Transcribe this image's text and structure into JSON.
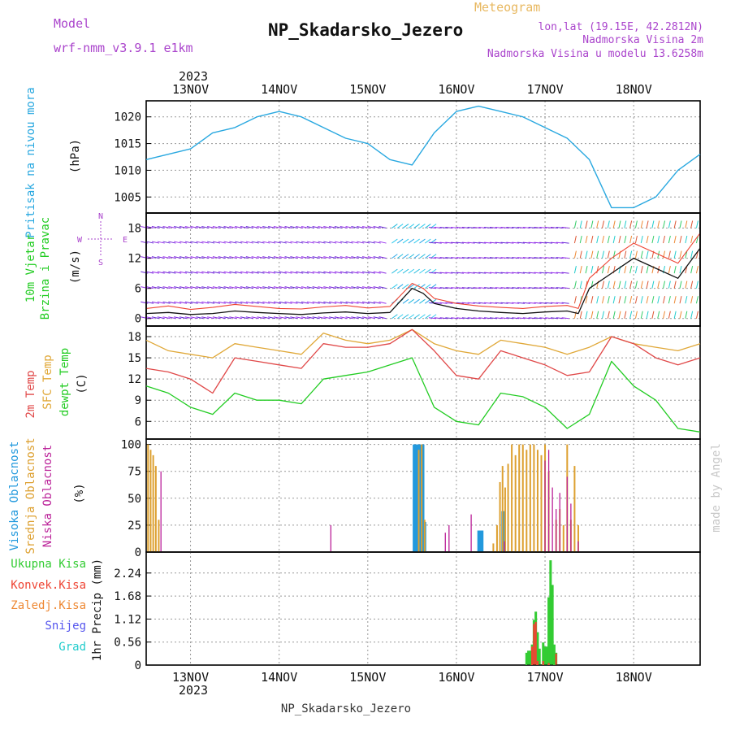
{
  "header": {
    "title": "NP_Skadarsko_Jezero",
    "subtitle": "Meteogram",
    "model_label": "Model",
    "model_name": "wrf-nmm_v3.9.1  e1km",
    "location": "lon,lat (19.15E, 42.2812N)",
    "elevation": "Nadmorska Visina 2m",
    "model_elevation": "Nadmorska Visina u modelu 13.6258m",
    "footer": "NP_Skadarsko_Jezero",
    "credit": "made by Angel"
  },
  "colors": {
    "pressure": "#29a8e0",
    "wind_speed": "#111111",
    "wind_gust": "#ee4433",
    "temp2m": "#e04848",
    "sfc_temp": "#e0a838",
    "dewpt": "#22cc22",
    "cloud_high": "#2299dd",
    "cloud_mid": "#dda030",
    "cloud_low": "#bb2299",
    "rain_total": "#33cc33",
    "rain_conv": "#ee4433",
    "freezing": "#ee8833",
    "snow": "#5555ee",
    "hail": "#22cccc",
    "purple_text": "#aa44cc",
    "title_orange": "#e8b860"
  },
  "chart_data": [
    {
      "type": "line",
      "panel": "pressure",
      "ylabel": "Pritisak na nivou mora",
      "unit": "(hPa)",
      "ylim": [
        1002,
        1023
      ],
      "yticks": [
        1005,
        1010,
        1015,
        1020
      ],
      "x_hours": [
        0,
        6,
        12,
        18,
        24,
        30,
        36,
        42,
        48,
        54,
        60,
        66,
        72,
        78,
        84,
        90,
        96,
        102,
        108,
        114,
        120,
        126,
        132,
        138,
        144,
        150
      ],
      "series": [
        {
          "values": [
            1012,
            1013,
            1014,
            1017,
            1018,
            1020,
            1021,
            1020,
            1018,
            1016,
            1015,
            1012,
            1011,
            1017,
            1021,
            1022,
            1021,
            1020,
            1018,
            1016,
            1012,
            1003,
            1003,
            1005,
            1010,
            1013
          ]
        }
      ]
    },
    {
      "type": "line",
      "panel": "wind",
      "ylabel_1": "10m Vjetar",
      "ylabel_2": "Brzina i Pravac",
      "unit": "(m/s)",
      "compass_n": "N",
      "compass_e": "E",
      "compass_w": "W",
      "compass_s": "S",
      "ylim": [
        -1.5,
        21
      ],
      "yticks": [
        0,
        6,
        12,
        18
      ],
      "x_hours": [
        0,
        6,
        12,
        18,
        24,
        30,
        36,
        42,
        48,
        54,
        60,
        66,
        72,
        75,
        78,
        84,
        90,
        96,
        102,
        108,
        114,
        117,
        120,
        126,
        132,
        138,
        144,
        150
      ],
      "series": [
        {
          "name": "speed",
          "values": [
            1,
            1.2,
            0.8,
            1,
            1.5,
            1.2,
            1,
            0.8,
            1.1,
            1.3,
            1,
            1.2,
            6,
            5,
            3,
            2,
            1.5,
            1.2,
            1,
            1.3,
            1.5,
            1,
            6,
            9,
            12,
            10,
            8,
            14
          ]
        },
        {
          "name": "gust",
          "values": [
            2,
            2.5,
            1.8,
            2.2,
            2.8,
            2.4,
            2,
            1.9,
            2.3,
            2.6,
            2.1,
            2.4,
            7,
            6,
            4,
            3,
            2.5,
            2.2,
            2,
            2.4,
            2.6,
            2,
            8,
            12,
            15,
            13,
            11,
            17
          ]
        }
      ]
    },
    {
      "type": "line",
      "panel": "temperature",
      "ylabel_1": "2m Temp",
      "ylabel_2": "SFC Temp",
      "ylabel_3": "dewpt Temp",
      "unit": "(C)",
      "ylim": [
        3.5,
        19.5
      ],
      "yticks": [
        6,
        9,
        12,
        15,
        18
      ],
      "x_hours": [
        0,
        6,
        12,
        18,
        24,
        30,
        36,
        42,
        48,
        54,
        60,
        66,
        72,
        78,
        84,
        90,
        96,
        102,
        108,
        114,
        120,
        126,
        132,
        138,
        144,
        150
      ],
      "series": [
        {
          "name": "2m Temp",
          "values": [
            13.5,
            13,
            12,
            10,
            15,
            14.5,
            14,
            13.5,
            17,
            16.5,
            16.5,
            17,
            19,
            16,
            12.5,
            12,
            16,
            15,
            14,
            12.5,
            13,
            18,
            17,
            15,
            14,
            15
          ]
        },
        {
          "name": "SFC Temp",
          "values": [
            17.5,
            16,
            15.5,
            15,
            17,
            16.5,
            16,
            15.5,
            18.5,
            17.5,
            17,
            17.5,
            19,
            17,
            16,
            15.5,
            17.5,
            17,
            16.5,
            15.5,
            16.5,
            18,
            17,
            16.5,
            16,
            17
          ]
        },
        {
          "name": "dewpt Temp",
          "values": [
            11,
            10,
            8,
            7,
            10,
            9,
            9,
            8.5,
            12,
            12.5,
            13,
            14,
            15,
            8,
            6,
            5.5,
            10,
            9.5,
            8,
            5,
            7,
            14.5,
            11,
            9,
            5,
            4.5
          ]
        }
      ]
    },
    {
      "type": "bar",
      "panel": "clouds",
      "ylabel_1": "Visoka Oblacnost",
      "ylabel_2": "Srednja Oblacnost",
      "ylabel_3": "Niska Oblacnost",
      "unit": "(%)",
      "ylim": [
        0,
        105
      ],
      "yticks": [
        0,
        25,
        50,
        75,
        100
      ],
      "series": [
        {
          "name": "high",
          "points": [
            [
              72.5,
              100
            ],
            [
              73,
              100
            ],
            [
              73.5,
              100
            ],
            [
              74,
              100
            ],
            [
              74.5,
              100
            ],
            [
              75,
              100
            ],
            [
              75.5,
              28
            ],
            [
              90,
              20
            ],
            [
              90.5,
              20
            ],
            [
              91,
              20
            ],
            [
              96.5,
              38
            ],
            [
              97,
              38
            ]
          ]
        },
        {
          "name": "mid",
          "points": [
            [
              0.5,
              100
            ],
            [
              1.2,
              95
            ],
            [
              1.9,
              90
            ],
            [
              2.6,
              80
            ],
            [
              3.4,
              30
            ],
            [
              73.8,
              95
            ],
            [
              74.6,
              100
            ],
            [
              75.4,
              30
            ],
            [
              94,
              8
            ],
            [
              95,
              25
            ],
            [
              95.8,
              65
            ],
            [
              96.5,
              80
            ],
            [
              97.2,
              60
            ],
            [
              98,
              82
            ],
            [
              99,
              100
            ],
            [
              100,
              90
            ],
            [
              101,
              100
            ],
            [
              102,
              100
            ],
            [
              103,
              95
            ],
            [
              104,
              100
            ],
            [
              105,
              100
            ],
            [
              106,
              95
            ],
            [
              107,
              90
            ],
            [
              108,
              100
            ],
            [
              109,
              75
            ],
            [
              111,
              30
            ],
            [
              112,
              40
            ],
            [
              113,
              25
            ],
            [
              114,
              100
            ],
            [
              115,
              30
            ],
            [
              116,
              80
            ],
            [
              117,
              25
            ]
          ]
        },
        {
          "name": "low",
          "points": [
            [
              4,
              75
            ],
            [
              50,
              25
            ],
            [
              81,
              18
            ],
            [
              82,
              25
            ],
            [
              88,
              35
            ],
            [
              97,
              10
            ],
            [
              108,
              85
            ],
            [
              109,
              95
            ],
            [
              110,
              60
            ],
            [
              111,
              40
            ],
            [
              112,
              55
            ],
            [
              114,
              70
            ],
            [
              115,
              45
            ],
            [
              117,
              10
            ]
          ]
        }
      ]
    },
    {
      "type": "bar",
      "panel": "precip",
      "label_total": "Ukupna Kisa",
      "label_conv": "Konvek.Kisa",
      "label_freezing": "Zaledj.Kisa",
      "label_snow": "Snijeg",
      "label_hail": "Grad",
      "ylabel": "1hr Precip (mm)",
      "ylim": [
        0,
        2.75
      ],
      "yticks": [
        0,
        0.56,
        1.12,
        1.68,
        2.24
      ],
      "ytick_labels": [
        "0",
        "0.56",
        "1.12",
        "1.68",
        "2.24"
      ],
      "series": [
        {
          "name": "total",
          "points": [
            [
              103,
              0.3
            ],
            [
              103.5,
              0.35
            ],
            [
              104,
              0.35
            ],
            [
              104.5,
              0.5
            ],
            [
              105,
              1.1
            ],
            [
              105.5,
              1.3
            ],
            [
              106,
              0.8
            ],
            [
              106.5,
              0.4
            ],
            [
              107.5,
              0.55
            ],
            [
              108,
              0.45
            ],
            [
              108.5,
              0.45
            ],
            [
              109,
              1.65
            ],
            [
              109.5,
              2.55
            ],
            [
              110,
              1.95
            ],
            [
              110.5,
              0.5
            ],
            [
              111,
              0.3
            ]
          ]
        },
        {
          "name": "convective",
          "points": [
            [
              104.5,
              0.45
            ],
            [
              105,
              1.0
            ],
            [
              105.5,
              1.05
            ],
            [
              106,
              0.1
            ],
            [
              107.5,
              0.1
            ],
            [
              109,
              0.05
            ],
            [
              111,
              0.28
            ]
          ]
        }
      ]
    }
  ],
  "time_axis": {
    "start_hour_label": "0",
    "day_labels": [
      {
        "label": "13NOV",
        "hour": 12
      },
      {
        "label": "14NOV",
        "hour": 36
      },
      {
        "label": "15NOV",
        "hour": 60
      },
      {
        "label": "16NOV",
        "hour": 84
      },
      {
        "label": "17NOV",
        "hour": 108
      },
      {
        "label": "18NOV",
        "hour": 132
      }
    ],
    "year_label": "2023",
    "xlim": [
      0,
      150
    ]
  }
}
